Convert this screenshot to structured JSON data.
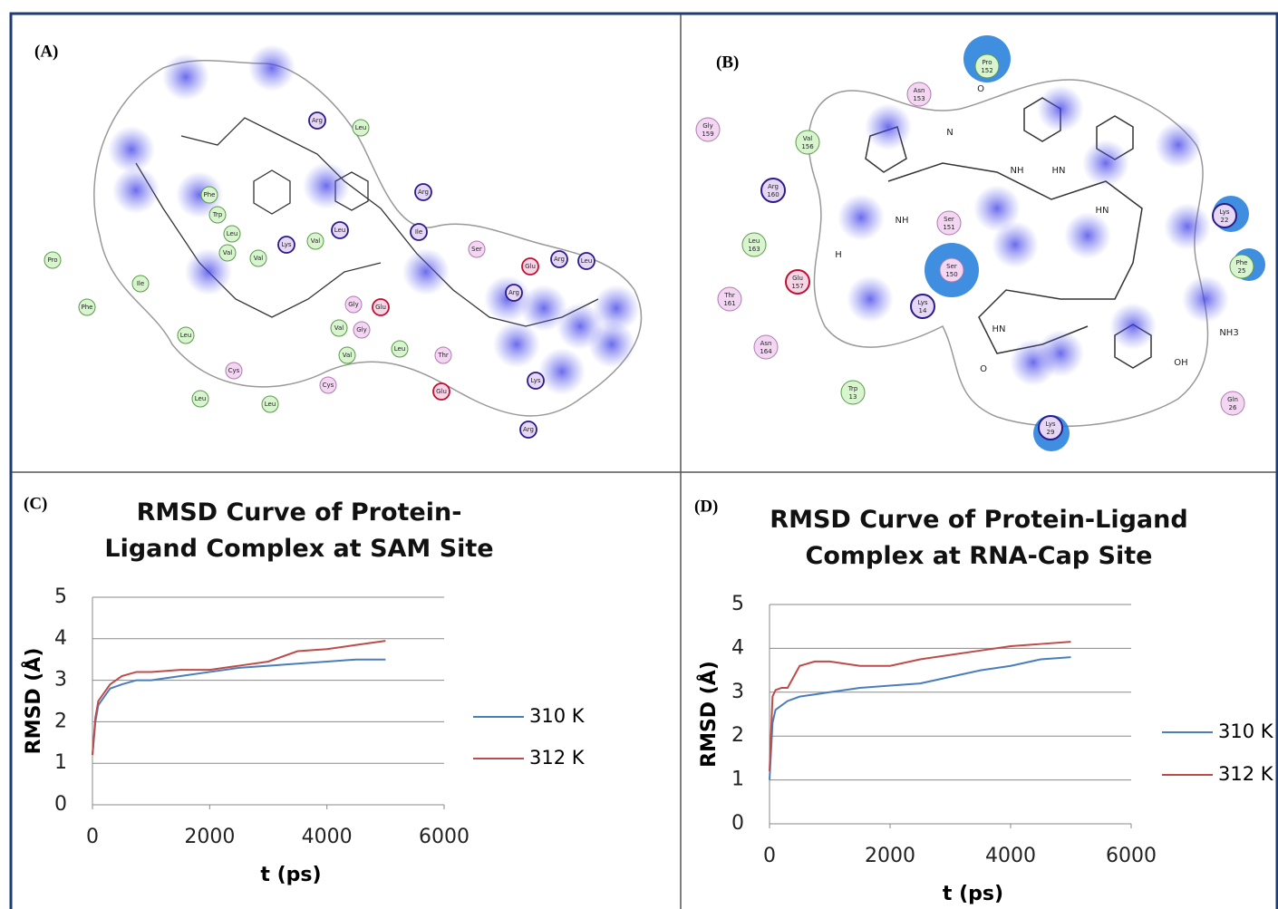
{
  "diagrams": [
    {
      "label": "(A)",
      "residues": [
        {
          "name": "Arg"
        },
        {
          "name": "Leu"
        },
        {
          "name": "Phe"
        },
        {
          "name": "Trp"
        },
        {
          "name": "Leu"
        },
        {
          "name": "Val"
        },
        {
          "name": "Val"
        },
        {
          "name": "Lys"
        },
        {
          "name": "Val"
        },
        {
          "name": "Leu"
        },
        {
          "name": "Arg"
        },
        {
          "name": "Ile"
        },
        {
          "name": "Ser"
        },
        {
          "name": "Glu"
        },
        {
          "name": "Arg"
        },
        {
          "name": "Leu"
        },
        {
          "name": "Arg"
        },
        {
          "name": "Pro"
        },
        {
          "name": "Phe"
        },
        {
          "name": "Ile"
        },
        {
          "name": "Leu"
        },
        {
          "name": "Gly"
        },
        {
          "name": "Glu"
        },
        {
          "name": "Val"
        },
        {
          "name": "Gly"
        },
        {
          "name": "Val"
        },
        {
          "name": "Leu"
        },
        {
          "name": "Thr"
        },
        {
          "name": "Cys"
        },
        {
          "name": "Cys"
        },
        {
          "name": "Leu"
        },
        {
          "name": "Leu"
        },
        {
          "name": "Glu"
        },
        {
          "name": "Lys"
        },
        {
          "name": "Arg"
        }
      ]
    },
    {
      "label": "(B)",
      "residues": [
        {
          "name": "Pro",
          "number": 152
        },
        {
          "name": "Asn",
          "number": 153
        },
        {
          "name": "Gly",
          "number": 159
        },
        {
          "name": "Val",
          "number": 156
        },
        {
          "name": "Arg",
          "number": 160
        },
        {
          "name": "Leu",
          "number": 163
        },
        {
          "name": "Glu",
          "number": 157
        },
        {
          "name": "Thr",
          "number": 161
        },
        {
          "name": "Asn",
          "number": 164
        },
        {
          "name": "Ser",
          "number": 151
        },
        {
          "name": "Ser",
          "number": 150
        },
        {
          "name": "Lys",
          "number": 14
        },
        {
          "name": "Trp",
          "number": 13
        },
        {
          "name": "Lys",
          "number": 22
        },
        {
          "name": "Phe",
          "number": 25
        },
        {
          "name": "Gln",
          "number": 26
        },
        {
          "name": "Lys",
          "number": 29
        }
      ],
      "atoms": [
        "O",
        "NH",
        "HN",
        "NH",
        "HN",
        "OH",
        "NH3",
        "HN",
        "H",
        "N",
        "O"
      ]
    }
  ],
  "chart_data": [
    {
      "type": "line",
      "label": "(C)",
      "title": "RMSD Curve of Protein-Ligand Complex at SAM Site",
      "x_label": "t (ps)",
      "y_label": "RMSD (Å)",
      "x": [
        0,
        50,
        100,
        200,
        300,
        500,
        750,
        1000,
        1500,
        2000,
        2500,
        3000,
        3500,
        4000,
        4500,
        5000
      ],
      "series": [
        {
          "name": "310 K",
          "color": "#4a7ebb",
          "values": [
            1.2,
            2.0,
            2.4,
            2.6,
            2.8,
            2.9,
            3.0,
            3.0,
            3.1,
            3.2,
            3.3,
            3.35,
            3.4,
            3.45,
            3.5,
            3.5
          ]
        },
        {
          "name": "312 K",
          "color": "#be4b48",
          "values": [
            1.2,
            2.1,
            2.5,
            2.7,
            2.9,
            3.1,
            3.2,
            3.2,
            3.25,
            3.25,
            3.35,
            3.45,
            3.7,
            3.75,
            3.85,
            3.95
          ]
        }
      ],
      "xlim": [
        0,
        6000
      ],
      "xticks": [
        0,
        2000,
        4000,
        6000
      ],
      "ylim": [
        0,
        5
      ],
      "yticks": [
        0,
        1,
        2,
        3,
        4,
        5
      ],
      "grid": true,
      "legend": "right"
    },
    {
      "type": "line",
      "label": "(D)",
      "title": "RMSD Curve of Protein-Ligand Complex at RNA-Cap Site",
      "x_label": "t (ps)",
      "y_label": "RMSD (Å)",
      "x": [
        0,
        50,
        100,
        200,
        300,
        500,
        750,
        1000,
        1500,
        2000,
        2500,
        3000,
        3500,
        4000,
        4500,
        5000
      ],
      "series": [
        {
          "name": "310 K",
          "color": "#4a7ebb",
          "values": [
            1.0,
            2.3,
            2.6,
            2.7,
            2.8,
            2.9,
            2.95,
            3.0,
            3.1,
            3.15,
            3.2,
            3.35,
            3.5,
            3.6,
            3.75,
            3.8
          ]
        },
        {
          "name": "312 K",
          "color": "#be4b48",
          "values": [
            1.2,
            2.9,
            3.05,
            3.1,
            3.1,
            3.6,
            3.7,
            3.7,
            3.6,
            3.6,
            3.75,
            3.85,
            3.95,
            4.05,
            4.1,
            4.15
          ]
        }
      ],
      "xlim": [
        0,
        6000
      ],
      "xticks": [
        0,
        2000,
        4000,
        6000
      ],
      "ylim": [
        0,
        5
      ],
      "yticks": [
        0,
        1,
        2,
        3,
        4,
        5
      ],
      "grid": true,
      "legend": "right"
    }
  ]
}
